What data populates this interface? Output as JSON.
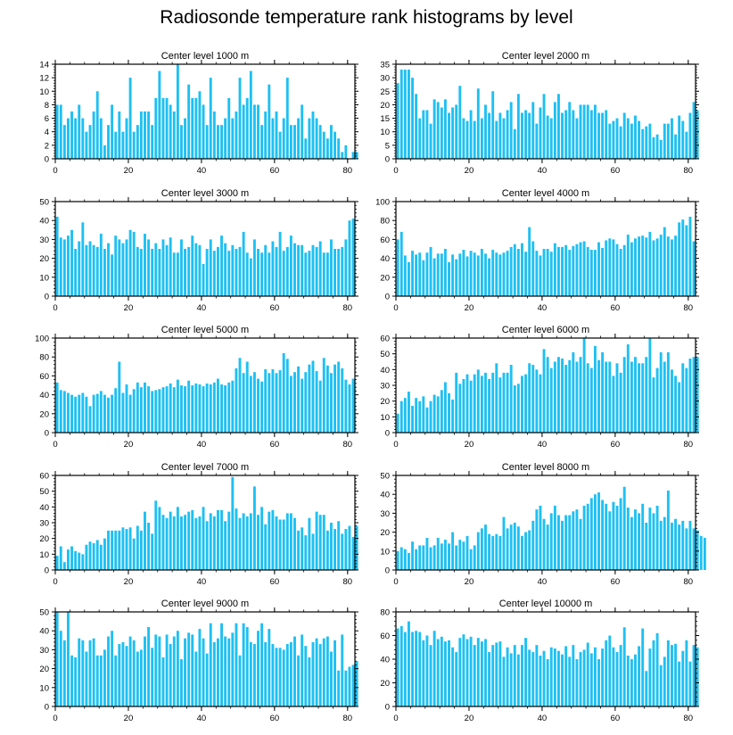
{
  "title": "Radiosonde temperature rank histograms by level",
  "colors": {
    "bar": "#1ec0f2",
    "axis": "#000000"
  },
  "chart_data": [
    {
      "type": "bar",
      "title": "Center level 1000 m",
      "xlabel": "",
      "ylabel": "",
      "xlim": [
        0,
        82
      ],
      "ylim": [
        0,
        14
      ],
      "xticks": [
        0,
        20,
        40,
        60,
        80
      ],
      "yticks": [
        0,
        2,
        4,
        6,
        8,
        10,
        12,
        14
      ],
      "values": [
        8,
        8,
        5,
        6,
        7,
        6,
        8,
        6,
        4,
        5,
        7,
        10,
        6,
        2,
        5,
        8,
        4,
        7,
        4,
        6,
        12,
        4,
        5,
        7,
        7,
        7,
        5,
        9,
        13,
        9,
        9,
        8,
        7,
        14,
        5,
        6,
        11,
        9,
        9,
        10,
        8,
        5,
        12,
        7,
        5,
        5,
        6,
        9,
        6,
        7,
        12,
        8,
        9,
        13,
        8,
        8,
        5,
        7,
        11,
        6,
        7,
        4,
        6,
        12,
        5,
        5,
        6,
        8,
        3,
        6,
        7,
        6,
        5,
        4,
        3,
        5,
        4,
        3,
        1,
        2,
        0,
        1,
        1
      ]
    },
    {
      "type": "bar",
      "title": "Center level 2000 m",
      "xlabel": "",
      "ylabel": "",
      "xlim": [
        0,
        82
      ],
      "ylim": [
        0,
        35
      ],
      "xticks": [
        0,
        20,
        40,
        60,
        80
      ],
      "yticks": [
        0,
        5,
        10,
        15,
        20,
        25,
        30,
        35
      ],
      "values": [
        28,
        33,
        33,
        33,
        30,
        24,
        15,
        18,
        18,
        13,
        22,
        21,
        19,
        22,
        17,
        19,
        20,
        27,
        15,
        14,
        18,
        14,
        26,
        15,
        20,
        17,
        25,
        14,
        17,
        15,
        18,
        21,
        11,
        24,
        17,
        18,
        17,
        21,
        13,
        19,
        24,
        16,
        15,
        21,
        24,
        17,
        18,
        21,
        18,
        15,
        20,
        20,
        20,
        18,
        20,
        17,
        17,
        18,
        13,
        14,
        15,
        12,
        17,
        15,
        13,
        16,
        14,
        11,
        12,
        13,
        8,
        9,
        7,
        13,
        13,
        15,
        9,
        16,
        14,
        10,
        17,
        21,
        18
      ]
    },
    {
      "type": "bar",
      "title": "Center level 3000 m",
      "xlabel": "",
      "ylabel": "",
      "xlim": [
        0,
        82
      ],
      "ylim": [
        0,
        50
      ],
      "xticks": [
        0,
        20,
        40,
        60,
        80
      ],
      "yticks": [
        0,
        10,
        20,
        30,
        40,
        50
      ],
      "values": [
        42,
        31,
        30,
        32,
        35,
        25,
        29,
        39,
        27,
        29,
        27,
        26,
        33,
        25,
        28,
        22,
        32,
        30,
        28,
        30,
        35,
        34,
        26,
        25,
        33,
        30,
        25,
        28,
        25,
        30,
        27,
        31,
        23,
        23,
        30,
        25,
        26,
        32,
        28,
        27,
        17,
        25,
        30,
        24,
        26,
        32,
        28,
        24,
        27,
        25,
        26,
        34,
        23,
        20,
        30,
        25,
        23,
        27,
        23,
        29,
        26,
        34,
        24,
        26,
        32,
        28,
        27,
        27,
        23,
        24,
        27,
        26,
        29,
        23,
        23,
        30,
        25,
        25,
        26,
        30,
        40,
        41
      ]
    },
    {
      "type": "bar",
      "title": "Center level 4000 m",
      "xlabel": "",
      "ylabel": "",
      "xlim": [
        0,
        82
      ],
      "ylim": [
        0,
        100
      ],
      "xticks": [
        0,
        20,
        40,
        60,
        80
      ],
      "yticks": [
        0,
        20,
        40,
        60,
        80,
        100
      ],
      "values": [
        60,
        68,
        43,
        36,
        48,
        44,
        46,
        38,
        46,
        52,
        40,
        45,
        45,
        50,
        36,
        44,
        39,
        45,
        49,
        42,
        48,
        46,
        43,
        50,
        45,
        40,
        49,
        46,
        44,
        46,
        48,
        52,
        55,
        50,
        56,
        47,
        73,
        58,
        48,
        43,
        50,
        50,
        47,
        56,
        52,
        52,
        54,
        49,
        53,
        55,
        57,
        58,
        52,
        49,
        49,
        57,
        51,
        59,
        61,
        60,
        55,
        50,
        54,
        65,
        57,
        61,
        63,
        64,
        62,
        68,
        59,
        61,
        65,
        73,
        63,
        60,
        64,
        78,
        81,
        75,
        84,
        58
      ]
    },
    {
      "type": "bar",
      "title": "Center level 5000 m",
      "xlabel": "",
      "ylabel": "",
      "xlim": [
        0,
        82
      ],
      "ylim": [
        0,
        100
      ],
      "xticks": [
        0,
        20,
        40,
        60,
        80
      ],
      "yticks": [
        0,
        20,
        40,
        60,
        80,
        100
      ],
      "values": [
        53,
        45,
        44,
        42,
        40,
        38,
        40,
        42,
        38,
        28,
        40,
        41,
        44,
        40,
        37,
        40,
        47,
        75,
        42,
        51,
        40,
        46,
        53,
        48,
        53,
        49,
        44,
        45,
        46,
        48,
        49,
        52,
        48,
        56,
        50,
        49,
        55,
        50,
        52,
        51,
        49,
        52,
        51,
        53,
        57,
        51,
        50,
        53,
        55,
        68,
        79,
        63,
        75,
        60,
        64,
        57,
        54,
        67,
        63,
        67,
        63,
        66,
        84,
        78,
        60,
        64,
        70,
        57,
        64,
        72,
        76,
        65,
        55,
        79,
        71,
        63,
        72,
        75,
        68,
        56,
        51,
        57
      ]
    },
    {
      "type": "bar",
      "title": "Center level 6000 m",
      "xlabel": "",
      "ylabel": "",
      "xlim": [
        0,
        82
      ],
      "ylim": [
        0,
        60
      ],
      "xticks": [
        0,
        20,
        40,
        60,
        80
      ],
      "yticks": [
        0,
        10,
        20,
        30,
        40,
        50,
        60
      ],
      "values": [
        12,
        20,
        22,
        26,
        17,
        22,
        20,
        23,
        16,
        20,
        24,
        23,
        27,
        32,
        25,
        21,
        38,
        31,
        34,
        37,
        33,
        37,
        40,
        36,
        38,
        34,
        38,
        44,
        35,
        38,
        38,
        43,
        30,
        31,
        36,
        37,
        44,
        43,
        40,
        37,
        53,
        48,
        41,
        45,
        48,
        47,
        43,
        46,
        51,
        45,
        48,
        62,
        44,
        41,
        55,
        46,
        51,
        45,
        45,
        36,
        44,
        38,
        48,
        56,
        45,
        48,
        44,
        44,
        48,
        62,
        35,
        41,
        51,
        45,
        51,
        40,
        36,
        32,
        44,
        41,
        47,
        48,
        48
      ]
    },
    {
      "type": "bar",
      "title": "Center level 7000 m",
      "xlabel": "",
      "ylabel": "",
      "xlim": [
        0,
        82
      ],
      "ylim": [
        0,
        60
      ],
      "xticks": [
        0,
        20,
        40,
        60,
        80
      ],
      "yticks": [
        0,
        10,
        20,
        30,
        40,
        50,
        60
      ],
      "values": [
        9,
        15,
        5,
        13,
        15,
        12,
        11,
        10,
        16,
        18,
        17,
        19,
        16,
        20,
        25,
        25,
        25,
        25,
        27,
        26,
        27,
        20,
        28,
        25,
        37,
        30,
        23,
        44,
        40,
        35,
        33,
        37,
        34,
        40,
        34,
        35,
        37,
        38,
        33,
        34,
        40,
        31,
        36,
        34,
        38,
        38,
        31,
        37,
        59,
        39,
        33,
        36,
        34,
        36,
        53,
        35,
        40,
        29,
        37,
        38,
        34,
        32,
        32,
        36,
        36,
        33,
        25,
        27,
        22,
        33,
        23,
        37,
        35,
        35,
        25,
        30,
        26,
        31,
        23,
        26,
        28,
        21,
        28
      ]
    },
    {
      "type": "bar",
      "title": "Center level 8000 m",
      "xlabel": "",
      "ylabel": "",
      "xlim": [
        0,
        82
      ],
      "ylim": [
        0,
        50
      ],
      "xticks": [
        0,
        20,
        40,
        60,
        80
      ],
      "yticks": [
        0,
        10,
        20,
        30,
        40,
        50
      ],
      "values": [
        10,
        12,
        11,
        9,
        15,
        11,
        13,
        13,
        17,
        12,
        13,
        17,
        14,
        16,
        14,
        20,
        13,
        16,
        15,
        18,
        11,
        13,
        20,
        22,
        24,
        19,
        18,
        19,
        18,
        28,
        22,
        24,
        25,
        23,
        18,
        20,
        21,
        26,
        32,
        34,
        27,
        24,
        30,
        34,
        29,
        26,
        29,
        29,
        31,
        32,
        27,
        34,
        35,
        38,
        40,
        41,
        37,
        35,
        31,
        36,
        34,
        38,
        44,
        33,
        28,
        32,
        30,
        35,
        25,
        33,
        30,
        34,
        26,
        28,
        42,
        25,
        27,
        24,
        26,
        22,
        26,
        22,
        21,
        18,
        17
      ]
    },
    {
      "type": "bar",
      "title": "Center level 9000 m",
      "xlabel": "",
      "ylabel": "",
      "xlim": [
        0,
        82
      ],
      "ylim": [
        0,
        50
      ],
      "xticks": [
        0,
        20,
        40,
        60,
        80
      ],
      "yticks": [
        0,
        10,
        20,
        30,
        40,
        50
      ],
      "values": [
        51,
        40,
        35,
        50,
        27,
        26,
        36,
        35,
        29,
        35,
        36,
        27,
        27,
        30,
        37,
        40,
        27,
        33,
        34,
        32,
        37,
        35,
        29,
        30,
        37,
        42,
        31,
        38,
        37,
        26,
        38,
        33,
        37,
        40,
        25,
        36,
        39,
        38,
        29,
        41,
        36,
        28,
        44,
        34,
        36,
        44,
        37,
        36,
        39,
        44,
        27,
        44,
        42,
        34,
        33,
        40,
        44,
        34,
        41,
        33,
        31,
        31,
        30,
        33,
        34,
        37,
        27,
        38,
        32,
        26,
        34,
        36,
        33,
        36,
        37,
        29,
        35,
        19,
        38,
        19,
        21,
        22,
        24
      ]
    },
    {
      "type": "bar",
      "title": "Center level 10000 m",
      "xlabel": "",
      "ylabel": "",
      "xlim": [
        0,
        82
      ],
      "ylim": [
        0,
        80
      ],
      "xticks": [
        0,
        20,
        40,
        60,
        80
      ],
      "yticks": [
        0,
        20,
        40,
        60,
        80
      ],
      "values": [
        66,
        68,
        63,
        72,
        63,
        64,
        63,
        56,
        60,
        52,
        64,
        57,
        59,
        55,
        56,
        50,
        46,
        58,
        61,
        57,
        59,
        52,
        58,
        55,
        57,
        46,
        52,
        54,
        55,
        42,
        50,
        45,
        52,
        44,
        52,
        58,
        48,
        46,
        52,
        43,
        47,
        40,
        50,
        49,
        47,
        44,
        51,
        42,
        52,
        40,
        46,
        48,
        54,
        45,
        50,
        40,
        49,
        56,
        60,
        50,
        46,
        52,
        67,
        43,
        40,
        44,
        51,
        66,
        30,
        49,
        56,
        62,
        35,
        42,
        56,
        52,
        53,
        38,
        47,
        56,
        38,
        52,
        50
      ]
    }
  ]
}
